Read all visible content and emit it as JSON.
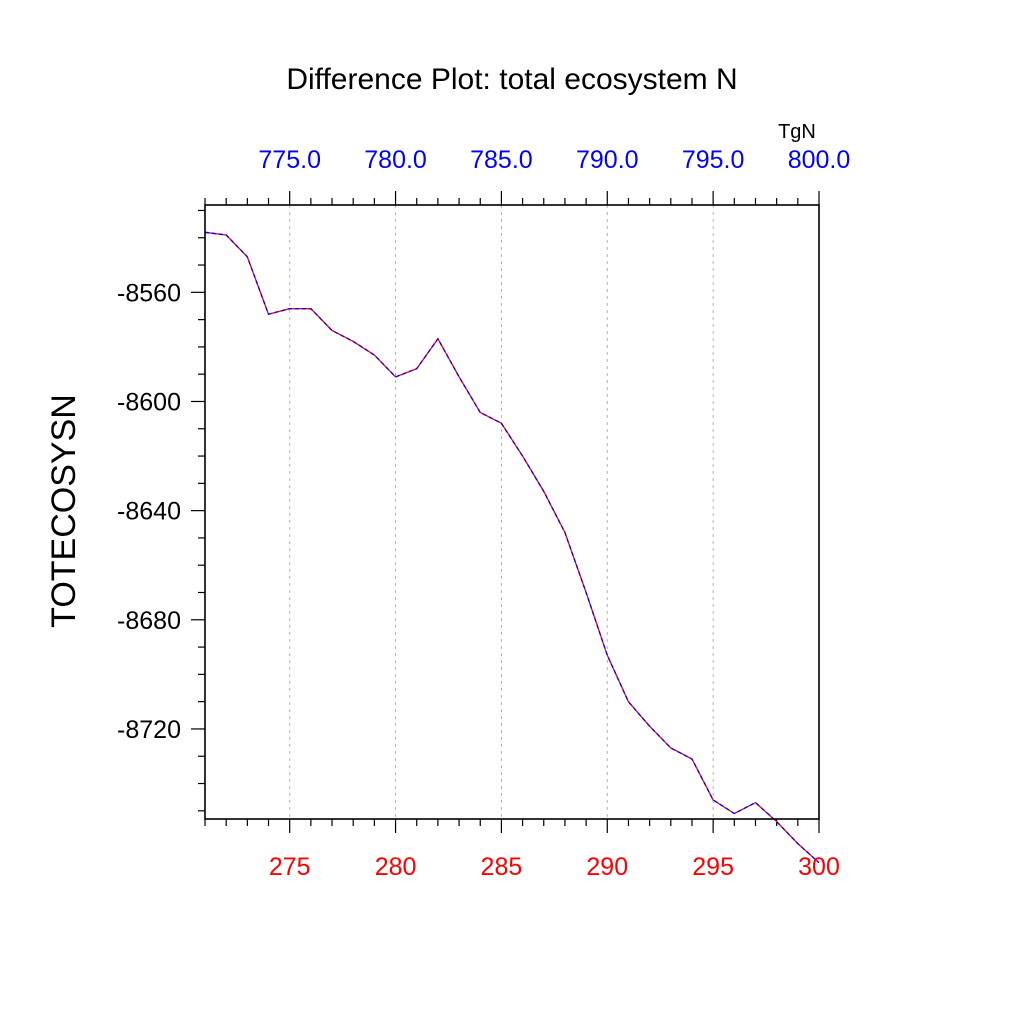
{
  "chart_data": {
    "type": "line",
    "title": "Difference Plot: total ecosystem N",
    "ylabel": "TOTECOSYSN",
    "top_axis_unit": "TgN",
    "xlim": [
      271,
      300
    ],
    "ylim": [
      -8753,
      -8528
    ],
    "top_xlim": [
      771,
      800
    ],
    "x_ticks": [
      275,
      280,
      285,
      290,
      295,
      300
    ],
    "x_tick_labels": [
      "275",
      "280",
      "285",
      "290",
      "295",
      "300"
    ],
    "top_ticks": [
      775,
      780,
      785,
      790,
      795,
      800
    ],
    "top_tick_labels": [
      "775.0",
      "780.0",
      "785.0",
      "790.0",
      "795.0",
      "800.0"
    ],
    "y_ticks": [
      -8560,
      -8600,
      -8640,
      -8680,
      -8720
    ],
    "y_tick_labels": [
      "-8560",
      "-8600",
      "-8640",
      "-8680",
      "-8720"
    ],
    "grid": "vertical dashed at major x ticks",
    "colors": {
      "bottom_ticks": "#ff0000",
      "top_ticks": "#0000ff",
      "line_primary": "#ff0000",
      "line_overlay": "#0000ff",
      "grid": "#b4b4b4"
    },
    "series": [
      {
        "x": [
          271,
          272,
          273,
          274,
          275,
          276,
          277,
          278,
          279,
          280,
          281,
          282,
          283,
          284,
          285,
          286,
          287,
          288,
          289,
          290,
          291,
          292,
          293,
          294,
          295,
          296,
          297,
          298,
          299,
          300
        ],
        "values": [
          -8538,
          -8539,
          -8547,
          -8568,
          -8566,
          -8566,
          -8574,
          -8578,
          -8583,
          -8591,
          -8588,
          -8577,
          -8591,
          -8604,
          -8608,
          -8620,
          -8633,
          -8648,
          -8670,
          -8693,
          -8710,
          -8719,
          -8727,
          -8731,
          -8746,
          -8751,
          -8747,
          -8754,
          -8762,
          -8769
        ]
      }
    ]
  }
}
